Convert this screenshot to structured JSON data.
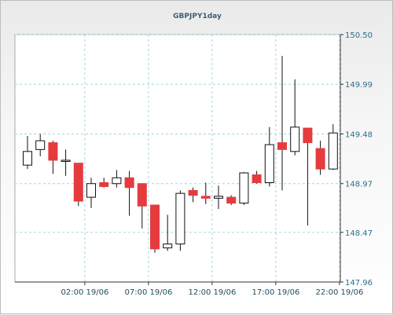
{
  "chart_data": {
    "type": "candlestick",
    "title": "GBPJPY1day",
    "ylim": [
      147.96,
      150.5
    ],
    "y_ticks": [
      150.5,
      149.99,
      149.48,
      148.97,
      148.47,
      147.96
    ],
    "y_tick_labels": [
      "150.50",
      "149.99",
      "149.48",
      "148.97",
      "148.47",
      "147.96"
    ],
    "x_tick_labels": [
      "02:00 19/06",
      "07:00 19/06",
      "12:00 19/06",
      "17:00 19/06",
      "22:00 19/06"
    ],
    "x_tick_index": [
      5,
      10,
      15,
      20,
      25
    ],
    "grid": true,
    "colors": {
      "up_fill": "#ffffff",
      "down_fill": "#e53b3f",
      "wick": "#111111",
      "grid": "#9fd8e0"
    },
    "candles": [
      {
        "open": 49.16,
        "high": 49.46,
        "low": 49.12,
        "close": 49.3
      },
      {
        "open": 49.32,
        "high": 49.48,
        "low": 49.25,
        "close": 49.41
      },
      {
        "open": 49.39,
        "high": 49.41,
        "low": 49.07,
        "close": 49.21
      },
      {
        "open": 49.21,
        "high": 49.32,
        "low": 49.05,
        "close": 49.21
      },
      {
        "open": 49.18,
        "high": 49.18,
        "low": 48.74,
        "close": 48.79
      },
      {
        "open": 48.83,
        "high": 49.03,
        "low": 48.72,
        "close": 48.97
      },
      {
        "open": 48.98,
        "high": 49.03,
        "low": 48.93,
        "close": 48.94
      },
      {
        "open": 48.97,
        "high": 49.11,
        "low": 48.93,
        "close": 49.03
      },
      {
        "open": 49.03,
        "high": 49.1,
        "low": 48.64,
        "close": 48.93
      },
      {
        "open": 48.97,
        "high": 48.97,
        "low": 48.51,
        "close": 48.74
      },
      {
        "open": 48.75,
        "high": 48.75,
        "low": 48.26,
        "close": 48.3
      },
      {
        "open": 48.31,
        "high": 48.65,
        "low": 48.28,
        "close": 48.35
      },
      {
        "open": 48.35,
        "high": 48.9,
        "low": 48.28,
        "close": 48.87
      },
      {
        "open": 48.9,
        "high": 48.93,
        "low": 48.78,
        "close": 48.85
      },
      {
        "open": 48.84,
        "high": 48.98,
        "low": 48.76,
        "close": 48.82
      },
      {
        "open": 48.82,
        "high": 48.95,
        "low": 48.71,
        "close": 48.84
      },
      {
        "open": 48.83,
        "high": 48.85,
        "low": 48.75,
        "close": 48.77
      },
      {
        "open": 48.77,
        "high": 49.09,
        "low": 48.75,
        "close": 49.08
      },
      {
        "open": 49.06,
        "high": 49.1,
        "low": 48.97,
        "close": 48.98
      },
      {
        "open": 48.98,
        "high": 49.55,
        "low": 48.94,
        "close": 49.37
      },
      {
        "open": 49.39,
        "high": 50.28,
        "low": 48.9,
        "close": 49.32
      },
      {
        "open": 49.3,
        "high": 50.04,
        "low": 49.26,
        "close": 49.55
      },
      {
        "open": 49.54,
        "high": 49.54,
        "low": 48.54,
        "close": 49.39
      },
      {
        "open": 49.33,
        "high": 49.41,
        "low": 49.06,
        "close": 49.12
      },
      {
        "open": 49.12,
        "high": 49.58,
        "low": 49.11,
        "close": 49.49
      }
    ]
  }
}
